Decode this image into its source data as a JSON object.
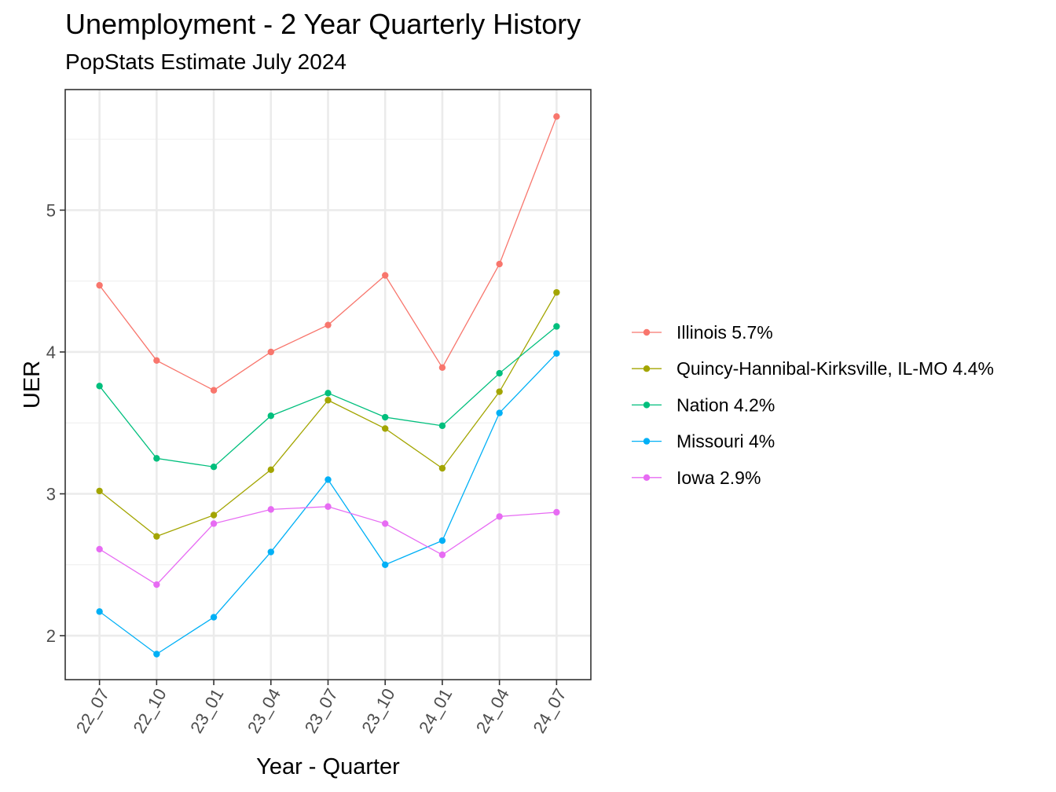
{
  "chart_data": {
    "type": "line",
    "title": "Unemployment - 2 Year Quarterly History",
    "subtitle": "PopStats Estimate July 2024",
    "xlabel": "Year - Quarter",
    "ylabel": "UER",
    "categories": [
      "22_07",
      "22_10",
      "23_01",
      "23_04",
      "23_07",
      "23_10",
      "24_01",
      "24_04",
      "24_07"
    ],
    "y_ticks": [
      2,
      3,
      4,
      5
    ],
    "y_tick_labels": [
      "2",
      "3",
      "4",
      "5"
    ],
    "ylim": [
      1.69,
      5.85
    ],
    "grid": true,
    "legend_position": "right",
    "series": [
      {
        "name": "Illinois 5.7%",
        "color": "#F8766D",
        "values": [
          4.47,
          3.94,
          3.73,
          4.0,
          4.19,
          4.54,
          3.89,
          4.62,
          5.66
        ]
      },
      {
        "name": "Quincy-Hannibal-Kirksville, IL-MO 4.4%",
        "color": "#A3A500",
        "values": [
          3.02,
          2.7,
          2.85,
          3.17,
          3.66,
          3.46,
          3.18,
          3.72,
          4.42
        ]
      },
      {
        "name": "Nation 4.2%",
        "color": "#00BF7D",
        "values": [
          3.76,
          3.25,
          3.19,
          3.55,
          3.71,
          3.54,
          3.48,
          3.85,
          4.18
        ]
      },
      {
        "name": "Missouri 4%",
        "color": "#00B0F6",
        "values": [
          2.17,
          1.87,
          2.13,
          2.59,
          3.1,
          2.5,
          2.67,
          3.57,
          3.99
        ]
      },
      {
        "name": "Iowa 2.9%",
        "color": "#E76BF3",
        "values": [
          2.61,
          2.36,
          2.79,
          2.89,
          2.91,
          2.79,
          2.57,
          2.84,
          2.87
        ]
      }
    ]
  }
}
